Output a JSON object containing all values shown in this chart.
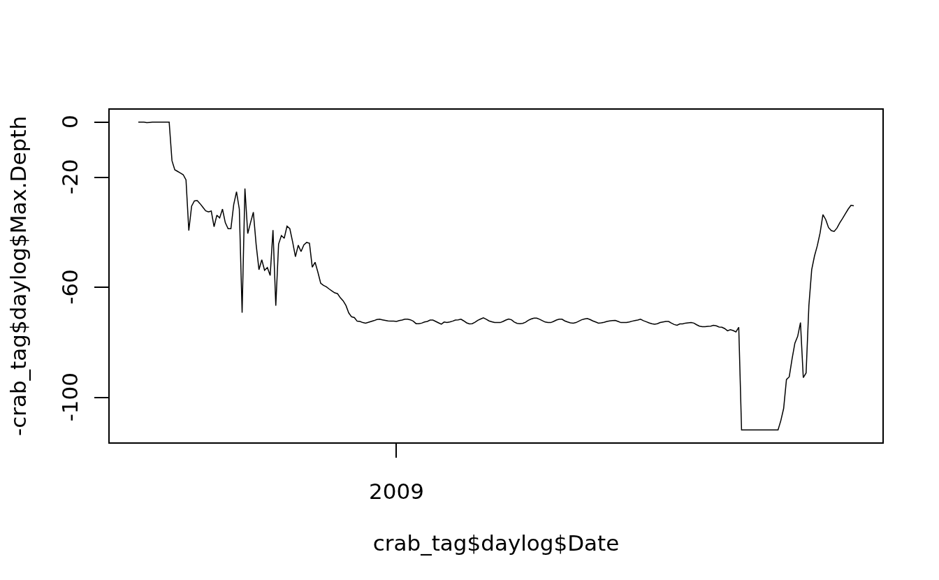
{
  "chart_data": {
    "type": "line",
    "xlabel": "crab_tag$daylog$Date",
    "ylabel": "-crab_tag$daylog$Max.Depth",
    "categories": [
      null,
      null,
      null,
      null,
      null,
      null,
      null,
      null,
      null,
      null,
      null,
      null,
      null,
      null,
      null,
      null,
      null,
      null,
      null,
      null,
      null,
      null,
      null,
      null,
      null,
      null,
      null,
      null,
      null,
      null,
      null,
      null,
      null,
      null,
      null,
      null,
      null,
      null,
      null,
      null,
      null,
      null,
      null,
      null,
      null,
      null,
      null,
      null,
      null,
      null,
      null,
      null,
      null,
      null,
      null,
      null,
      null,
      null,
      null,
      null,
      null,
      null,
      null,
      null,
      null,
      null,
      null,
      null,
      null,
      null,
      null,
      null,
      null,
      null,
      null,
      null,
      null,
      null,
      null,
      null,
      null,
      null,
      null,
      null,
      null,
      null,
      null,
      null,
      null,
      null,
      null,
      null,
      "2009",
      null,
      null,
      null,
      null,
      null,
      null,
      null,
      null,
      null,
      null,
      null,
      null,
      null,
      null,
      null,
      null,
      null,
      null,
      null,
      null,
      null,
      null,
      null,
      null,
      null,
      null,
      null,
      null,
      null,
      null,
      null,
      null,
      null,
      null,
      null,
      null,
      null,
      null,
      null,
      null,
      null,
      null,
      null,
      null,
      null,
      null,
      null,
      null,
      null,
      null,
      null,
      null,
      null,
      null,
      null,
      null,
      null,
      null,
      null,
      null,
      null,
      null,
      null,
      null,
      null,
      null,
      null,
      null,
      null,
      null,
      null,
      null,
      null,
      null,
      null,
      null,
      null,
      null,
      null,
      null,
      null,
      null,
      null,
      null,
      null,
      null,
      null,
      null,
      null,
      null,
      null,
      null,
      null,
      null,
      null,
      null,
      null,
      null,
      null,
      null,
      null,
      null,
      null,
      null,
      null,
      null,
      null,
      null,
      null,
      null,
      null,
      null,
      null,
      null,
      null,
      null,
      null,
      null,
      null,
      null,
      null,
      null,
      null,
      null,
      null,
      null,
      null,
      null,
      null,
      null,
      null,
      null,
      null,
      null,
      null,
      null,
      null,
      null,
      null,
      null,
      null,
      null,
      null,
      null,
      null,
      null,
      null,
      null,
      null,
      null,
      null,
      null,
      null,
      null,
      null,
      null,
      null,
      null,
      null,
      null,
      null,
      null,
      null
    ],
    "series": [
      {
        "color": "#000000",
        "values": [
          0,
          0,
          0,
          -0.2,
          -0.1,
          0,
          0,
          0,
          0,
          0,
          0,
          0,
          -14.0,
          -17.3,
          -17.9,
          -18.5,
          -19.1,
          -21.0,
          -39.4,
          -30.5,
          -28.6,
          -28.5,
          -29.6,
          -30.9,
          -32.2,
          -32.6,
          -32.3,
          -38.0,
          -33.8,
          -34.8,
          -31.6,
          -36.5,
          -38.7,
          -38.7,
          -30.0,
          -25.3,
          -31.6,
          -69.2,
          -24.1,
          -40.5,
          -36.5,
          -32.7,
          -44.5,
          -53.6,
          -50.0,
          -53.8,
          -52.8,
          -55.7,
          -39.2,
          -66.7,
          -44.3,
          -41.2,
          -42.2,
          -37.8,
          -38.7,
          -43.5,
          -48.9,
          -44.7,
          -47.0,
          -44.6,
          -43.7,
          -44.0,
          -52.7,
          -50.9,
          -54.5,
          -58.5,
          -59.3,
          -59.8,
          -60.6,
          -61.3,
          -62.0,
          -62.3,
          -63.8,
          -64.9,
          -66.6,
          -69.3,
          -70.7,
          -71.0,
          -72.3,
          -72.4,
          -72.8,
          -73.0,
          -72.7,
          -72.4,
          -72.1,
          -71.7,
          -71.6,
          -71.8,
          -72.0,
          -72.2,
          -72.3,
          -72.3,
          -72.4,
          -72.1,
          -71.9,
          -71.6,
          -71.6,
          -71.8,
          -72.3,
          -73.2,
          -73.2,
          -73.0,
          -72.6,
          -72.4,
          -71.9,
          -71.9,
          -72.4,
          -72.9,
          -73.4,
          -72.6,
          -72.8,
          -72.6,
          -72.3,
          -71.9,
          -71.8,
          -71.6,
          -72.2,
          -72.9,
          -73.3,
          -73.2,
          -72.7,
          -72.0,
          -71.5,
          -71.1,
          -71.6,
          -72.2,
          -72.5,
          -72.8,
          -72.8,
          -72.8,
          -72.4,
          -71.9,
          -71.5,
          -71.8,
          -72.6,
          -73.1,
          -73.2,
          -73.1,
          -72.7,
          -72.0,
          -71.5,
          -71.2,
          -71.2,
          -71.6,
          -72.1,
          -72.6,
          -72.8,
          -72.8,
          -72.4,
          -71.9,
          -71.6,
          -71.6,
          -72.2,
          -72.6,
          -72.9,
          -73.0,
          -72.8,
          -72.3,
          -71.8,
          -71.5,
          -71.3,
          -71.7,
          -72.2,
          -72.6,
          -73.0,
          -72.9,
          -72.7,
          -72.4,
          -72.2,
          -72.1,
          -72.0,
          -72.4,
          -72.8,
          -72.8,
          -72.8,
          -72.6,
          -72.3,
          -72.1,
          -71.9,
          -71.6,
          -72.1,
          -72.5,
          -72.9,
          -73.2,
          -73.4,
          -73.2,
          -72.8,
          -72.6,
          -72.4,
          -72.4,
          -73.0,
          -73.5,
          -73.8,
          -73.3,
          -73.3,
          -73.0,
          -72.9,
          -72.8,
          -73.0,
          -73.6,
          -74.1,
          -74.3,
          -74.3,
          -74.2,
          -74.1,
          -73.8,
          -74.0,
          -74.4,
          -74.5,
          -75.0,
          -75.8,
          -75.4,
          -75.7,
          -76.2,
          -74.5,
          -111.8,
          -111.8,
          -111.8,
          -111.8,
          -111.8,
          -111.8,
          -111.8,
          -111.8,
          -111.8,
          -111.8,
          -111.8,
          -111.8,
          -111.8,
          -111.8,
          -108.4,
          -104.0,
          -93.5,
          -92.5,
          -86.0,
          -80.3,
          -77.8,
          -72.8,
          -92.8,
          -91.1,
          -66.6,
          -53.6,
          -48.6,
          -44.9,
          -40.2,
          -33.6,
          -35.4,
          -38.3,
          -39.4,
          -39.7,
          -38.5,
          -36.6,
          -35.0,
          -33.3,
          -31.6,
          -30.2,
          -30.4
        ]
      }
    ],
    "ylim": [
      -116.3,
      4.5
    ],
    "yticks": [
      -100,
      -60,
      -20,
      0
    ],
    "grid": false,
    "marker": "none",
    "line_style": "solid"
  }
}
